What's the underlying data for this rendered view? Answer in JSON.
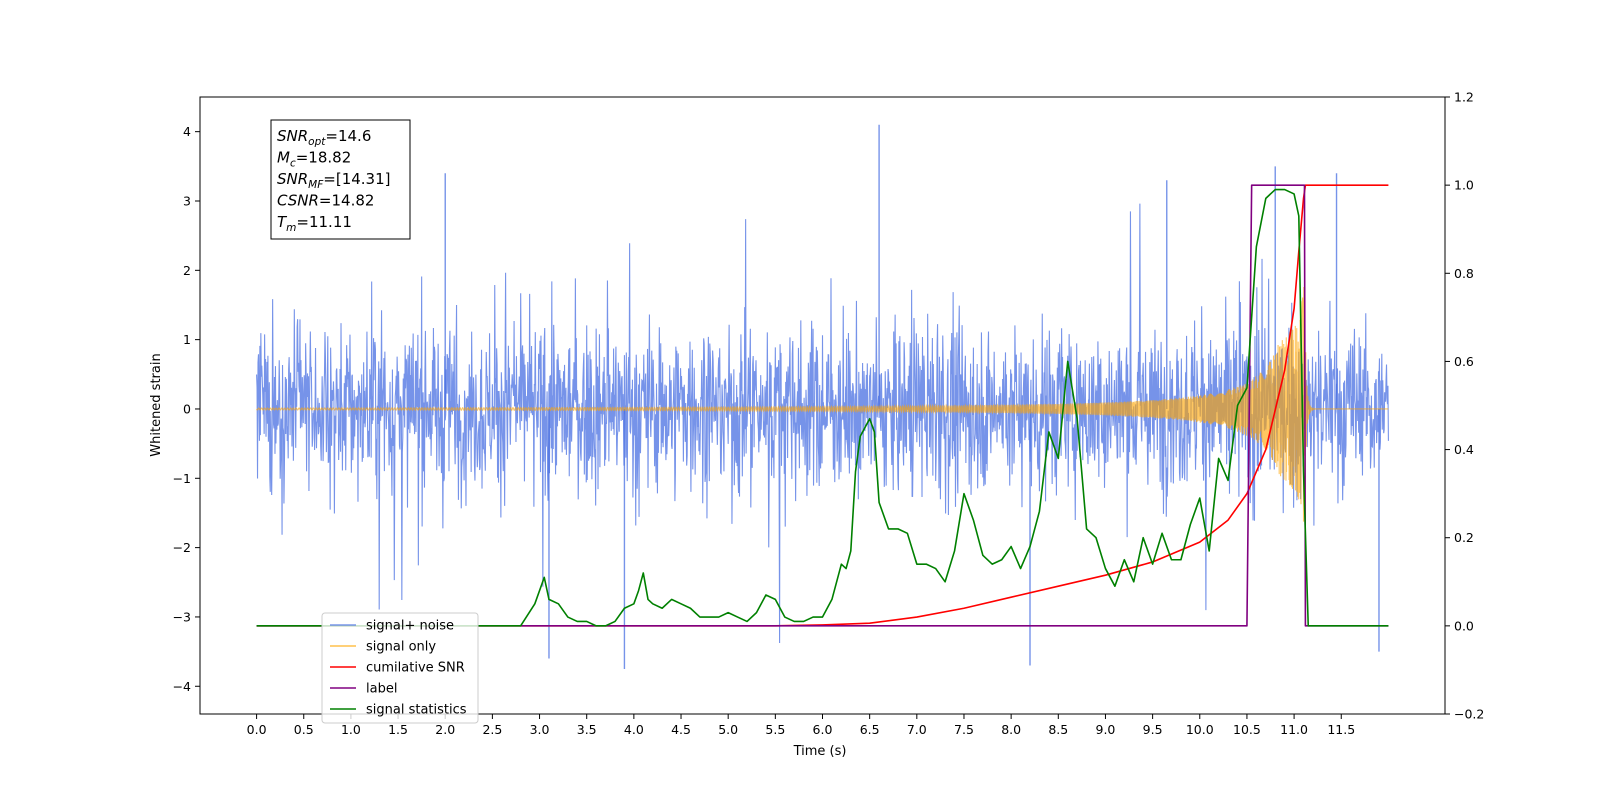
{
  "chart_data": {
    "type": "line",
    "xlabel": "Time (s)",
    "ylabel": "Whitened strain",
    "xlim": [
      -0.6,
      12.6
    ],
    "ylim": [
      -4.4,
      4.5
    ],
    "y2lim": [
      -0.2,
      1.2
    ],
    "x_ticks": [
      "0.0",
      "0.5",
      "1.0",
      "1.5",
      "2.0",
      "2.5",
      "3.0",
      "3.5",
      "4.0",
      "4.5",
      "5.0",
      "5.5",
      "6.0",
      "6.5",
      "7.0",
      "7.5",
      "8.0",
      "8.5",
      "9.0",
      "9.5",
      "10.0",
      "10.5",
      "11.0",
      "11.5"
    ],
    "y_ticks": [
      "4",
      "3",
      "2",
      "1",
      "0",
      "−1",
      "−2",
      "−3",
      "−4"
    ],
    "y2_ticks": [
      "1.2",
      "1.0",
      "0.8",
      "0.6",
      "0.4",
      "0.2",
      "0.0",
      "−0.2"
    ],
    "stats_box": [
      {
        "main": "SNR",
        "sub": "opt",
        "value": "=14.6"
      },
      {
        "main": "M",
        "sub": "c",
        "value": "=18.82"
      },
      {
        "main": "SNR",
        "sub": "MF",
        "value": "=[14.31]"
      },
      {
        "main": "CSNR",
        "sub": "",
        "value": "=14.82"
      },
      {
        "main": "T",
        "sub": "m",
        "value": "=11.11"
      }
    ],
    "legend": {
      "placement": "lower-left",
      "entries": [
        {
          "label": "signal+ noise",
          "color": "#4169e1"
        },
        {
          "label": "signal only",
          "color": "#ffa500"
        },
        {
          "label": "cumilative SNR",
          "color": "#ff0000"
        },
        {
          "label": "label",
          "color": "#800080"
        },
        {
          "label": "signal statistics",
          "color": "#008000"
        }
      ]
    },
    "series": [
      {
        "name": "signal+ noise",
        "axis": "left",
        "color": "#4169e1",
        "kind": "noise",
        "x_range": [
          0.0,
          12.0
        ],
        "typical_range": [
          -2.0,
          2.0
        ],
        "max": 4.1,
        "min": -3.75
      },
      {
        "name": "signal only",
        "axis": "left",
        "color": "#ffa500",
        "kind": "chirp",
        "x_range": [
          0.0,
          12.0
        ],
        "merger_time": 11.11,
        "peak_amplitude": 1.9
      },
      {
        "name": "cumilative SNR",
        "axis": "right",
        "x": [
          0.0,
          5.5,
          6.0,
          6.5,
          7.0,
          7.5,
          8.0,
          8.5,
          9.0,
          9.5,
          10.0,
          10.3,
          10.5,
          10.7,
          10.9,
          11.0,
          11.05,
          11.1,
          11.12,
          11.5,
          12.0
        ],
        "y": [
          0.0,
          0.0,
          0.002,
          0.006,
          0.02,
          0.04,
          0.065,
          0.09,
          0.115,
          0.145,
          0.19,
          0.24,
          0.3,
          0.4,
          0.58,
          0.72,
          0.85,
          0.97,
          1.0,
          1.0,
          1.0
        ]
      },
      {
        "name": "label",
        "axis": "right",
        "x": [
          0.0,
          10.5,
          10.55,
          11.11,
          11.12,
          12.0
        ],
        "y": [
          0.0,
          0.0,
          1.0,
          1.0,
          0.0,
          0.0
        ]
      },
      {
        "name": "signal statistics",
        "axis": "right",
        "x": [
          0.0,
          2.8,
          2.95,
          3.05,
          3.1,
          3.2,
          3.3,
          3.4,
          3.5,
          3.6,
          3.7,
          3.8,
          3.9,
          4.0,
          4.05,
          4.1,
          4.15,
          4.2,
          4.3,
          4.4,
          4.5,
          4.6,
          4.7,
          4.8,
          4.9,
          5.0,
          5.1,
          5.2,
          5.3,
          5.4,
          5.5,
          5.6,
          5.7,
          5.8,
          5.9,
          6.0,
          6.1,
          6.2,
          6.25,
          6.3,
          6.35,
          6.4,
          6.5,
          6.55,
          6.6,
          6.7,
          6.8,
          6.9,
          7.0,
          7.1,
          7.2,
          7.3,
          7.4,
          7.5,
          7.6,
          7.7,
          7.8,
          7.9,
          8.0,
          8.1,
          8.2,
          8.3,
          8.4,
          8.5,
          8.6,
          8.7,
          8.8,
          8.9,
          9.0,
          9.1,
          9.2,
          9.3,
          9.4,
          9.5,
          9.6,
          9.7,
          9.8,
          9.9,
          10.0,
          10.1,
          10.2,
          10.3,
          10.4,
          10.5,
          10.6,
          10.7,
          10.8,
          10.9,
          11.0,
          11.05,
          11.1,
          11.15,
          11.2,
          12.0
        ],
        "y": [
          0.0,
          0.0,
          0.05,
          0.11,
          0.06,
          0.05,
          0.02,
          0.01,
          0.01,
          0.0,
          0.0,
          0.01,
          0.04,
          0.05,
          0.08,
          0.12,
          0.06,
          0.05,
          0.04,
          0.06,
          0.05,
          0.04,
          0.02,
          0.02,
          0.02,
          0.03,
          0.02,
          0.01,
          0.03,
          0.07,
          0.06,
          0.02,
          0.01,
          0.01,
          0.02,
          0.02,
          0.06,
          0.14,
          0.13,
          0.17,
          0.35,
          0.43,
          0.47,
          0.44,
          0.28,
          0.22,
          0.22,
          0.21,
          0.14,
          0.14,
          0.13,
          0.1,
          0.17,
          0.3,
          0.24,
          0.16,
          0.14,
          0.15,
          0.18,
          0.13,
          0.18,
          0.26,
          0.44,
          0.38,
          0.6,
          0.47,
          0.22,
          0.2,
          0.13,
          0.09,
          0.15,
          0.1,
          0.2,
          0.14,
          0.21,
          0.15,
          0.15,
          0.23,
          0.29,
          0.17,
          0.38,
          0.33,
          0.5,
          0.54,
          0.86,
          0.97,
          0.99,
          0.99,
          0.98,
          0.93,
          0.35,
          0.0,
          0.0,
          0.0
        ]
      }
    ]
  }
}
